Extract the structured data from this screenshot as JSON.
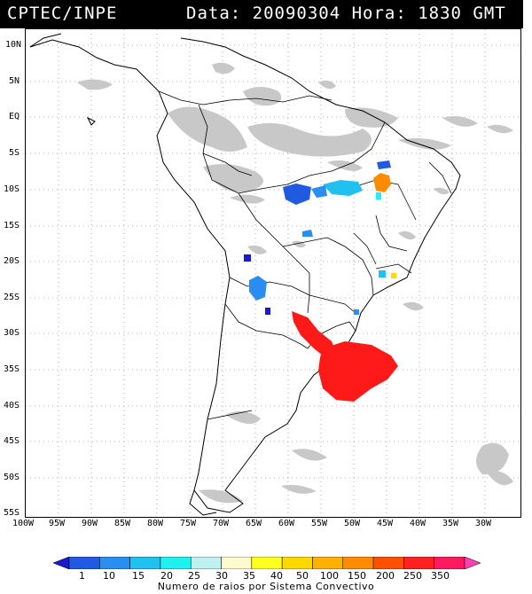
{
  "header": {
    "source": "CPTEC/INPE",
    "datetime": "Data: 20090304 Hora: 1830 GMT"
  },
  "map": {
    "lat_labels": [
      "10N",
      "5N",
      "EQ",
      "5S",
      "10S",
      "15S",
      "20S",
      "25S",
      "30S",
      "35S",
      "40S",
      "45S",
      "50S",
      "55S"
    ],
    "lon_labels": [
      "100W",
      "95W",
      "90W",
      "85W",
      "80W",
      "75W",
      "70W",
      "65W",
      "60W",
      "55W",
      "50W",
      "45W",
      "40W",
      "35W",
      "30W"
    ],
    "lat_range": [
      10,
      -55
    ],
    "lon_range": [
      -100,
      -30
    ],
    "grid": "dotted",
    "background_clouds_color": "#c8c8c8"
  },
  "colorbar": {
    "ticks": [
      "1",
      "10",
      "15",
      "20",
      "25",
      "30",
      "35",
      "40",
      "50",
      "100",
      "150",
      "200",
      "250",
      "350"
    ],
    "colors": [
      "#1a1ad0",
      "#1f5ae0",
      "#2a8ef0",
      "#20c0f0",
      "#20f0f0",
      "#c0f0f0",
      "#fffacd",
      "#ffff20",
      "#ffd800",
      "#ffb000",
      "#ff8c00",
      "#ff5000",
      "#ff2020",
      "#ff1a60",
      "#ff40b0"
    ],
    "caption": "Numero de raios por Sistema Convectivo"
  }
}
